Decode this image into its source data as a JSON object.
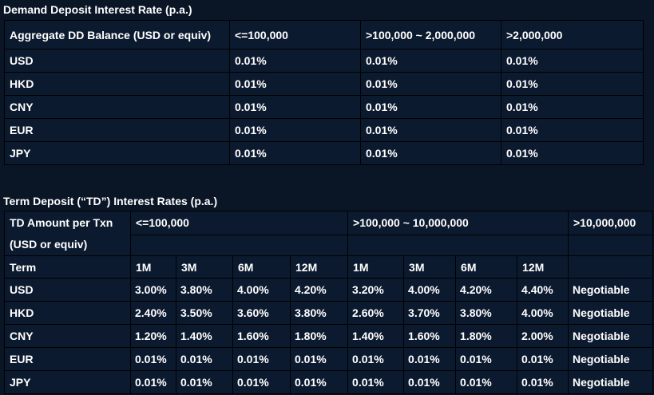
{
  "demand_deposit": {
    "title": "Demand Deposit Interest Rate (p.a.)",
    "headers": [
      "Aggregate DD Balance (USD or equiv)",
      "<=100,000",
      ">100,000 ~ 2,000,000",
      ">2,000,000"
    ],
    "rows": [
      {
        "currency": "USD",
        "rates": [
          "0.01%",
          "0.01%",
          "0.01%"
        ]
      },
      {
        "currency": "HKD",
        "rates": [
          "0.01%",
          "0.01%",
          "0.01%"
        ]
      },
      {
        "currency": "CNY",
        "rates": [
          "0.01%",
          "0.01%",
          "0.01%"
        ]
      },
      {
        "currency": "EUR",
        "rates": [
          "0.01%",
          "0.01%",
          "0.01%"
        ]
      },
      {
        "currency": "JPY",
        "rates": [
          "0.01%",
          "0.01%",
          "0.01%"
        ]
      }
    ]
  },
  "term_deposit": {
    "title": "Term Deposit (“TD”) Interest Rates (p.a.)",
    "amount_label_line1": "TD Amount per Txn",
    "amount_label_line2": "(USD or equiv)",
    "tiers": [
      "<=100,000",
      ">100,000 ~ 10,000,000",
      ">10,000,000"
    ],
    "term_label": "Term",
    "terms": [
      "1M",
      "3M",
      "6M",
      "12M",
      "1M",
      "3M",
      "6M",
      "12M"
    ],
    "rows": [
      {
        "currency": "USD",
        "rates": [
          "3.00%",
          "3.80%",
          "4.00%",
          "4.20%",
          "3.20%",
          "4.00%",
          "4.20%",
          "4.40%",
          "Negotiable"
        ]
      },
      {
        "currency": "HKD",
        "rates": [
          "2.40%",
          "3.50%",
          "3.60%",
          "3.80%",
          "2.60%",
          "3.70%",
          "3.80%",
          "4.00%",
          "Negotiable"
        ]
      },
      {
        "currency": "CNY",
        "rates": [
          "1.20%",
          "1.40%",
          "1.60%",
          "1.80%",
          "1.40%",
          "1.60%",
          "1.80%",
          "2.00%",
          "Negotiable"
        ]
      },
      {
        "currency": "EUR",
        "rates": [
          "0.01%",
          "0.01%",
          "0.01%",
          "0.01%",
          "0.01%",
          "0.01%",
          "0.01%",
          "0.01%",
          "Negotiable"
        ]
      },
      {
        "currency": "JPY",
        "rates": [
          "0.01%",
          "0.01%",
          "0.01%",
          "0.01%",
          "0.01%",
          "0.01%",
          "0.01%",
          "0.01%",
          "Negotiable"
        ]
      }
    ]
  }
}
